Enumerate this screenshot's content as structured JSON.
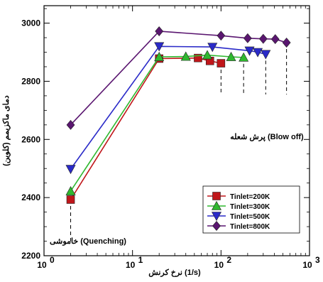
{
  "chart_data": {
    "type": "line",
    "title": "",
    "xlabel": "نرخ کرنش (1/s)",
    "ylabel": "دمای ماکزیمم (کلوین)",
    "xscale": "log",
    "xlim": [
      1,
      1000
    ],
    "ylim": [
      2200,
      3060
    ],
    "xticks": [
      {
        "value": 1,
        "base": "10",
        "exp": "0"
      },
      {
        "value": 10,
        "base": "10",
        "exp": "1"
      },
      {
        "value": 100,
        "base": "10",
        "exp": "2"
      },
      {
        "value": 1000,
        "base": "10",
        "exp": "3"
      }
    ],
    "yticks": [
      2200,
      2400,
      2600,
      2800,
      3000
    ],
    "grid": false,
    "legend_position": "bottom-right",
    "series": [
      {
        "name": "Tinlet=200K",
        "color": "#c0161a",
        "marker": "square",
        "x": [
          2,
          20,
          55,
          75,
          100
        ],
        "y": [
          2393,
          2878,
          2880,
          2870,
          2862
        ]
      },
      {
        "name": "Tinlet=300K",
        "color": "#2fb82f",
        "marker": "triangle-up",
        "x": [
          2,
          20,
          40,
          70,
          130,
          180
        ],
        "y": [
          2422,
          2884,
          2885,
          2890,
          2884,
          2882
        ]
      },
      {
        "name": "Tinlet=500K",
        "color": "#2a2ac8",
        "marker": "triangle-down",
        "x": [
          2,
          20,
          80,
          210,
          260,
          320
        ],
        "y": [
          2498,
          2920,
          2918,
          2905,
          2900,
          2893
        ]
      },
      {
        "name": "Tinlet=800K",
        "color": "#5a1670",
        "marker": "diamond",
        "x": [
          2,
          20,
          100,
          200,
          300,
          410,
          550
        ],
        "y": [
          2650,
          2972,
          2957,
          2948,
          2946,
          2945,
          2933
        ]
      }
    ],
    "dashed_markers": [
      {
        "x": 2,
        "y_from": 2393,
        "y_to": 2240
      },
      {
        "x": 100,
        "y_from": 2862,
        "y_to": 2755
      },
      {
        "x": 180,
        "y_from": 2882,
        "y_to": 2755
      },
      {
        "x": 320,
        "y_from": 2893,
        "y_to": 2755
      },
      {
        "x": 550,
        "y_from": 2933,
        "y_to": 2755
      }
    ],
    "annotations": {
      "blow_off": "پرش شعله (Blow off)",
      "quenching": "خاموشی (Quenching)"
    }
  }
}
